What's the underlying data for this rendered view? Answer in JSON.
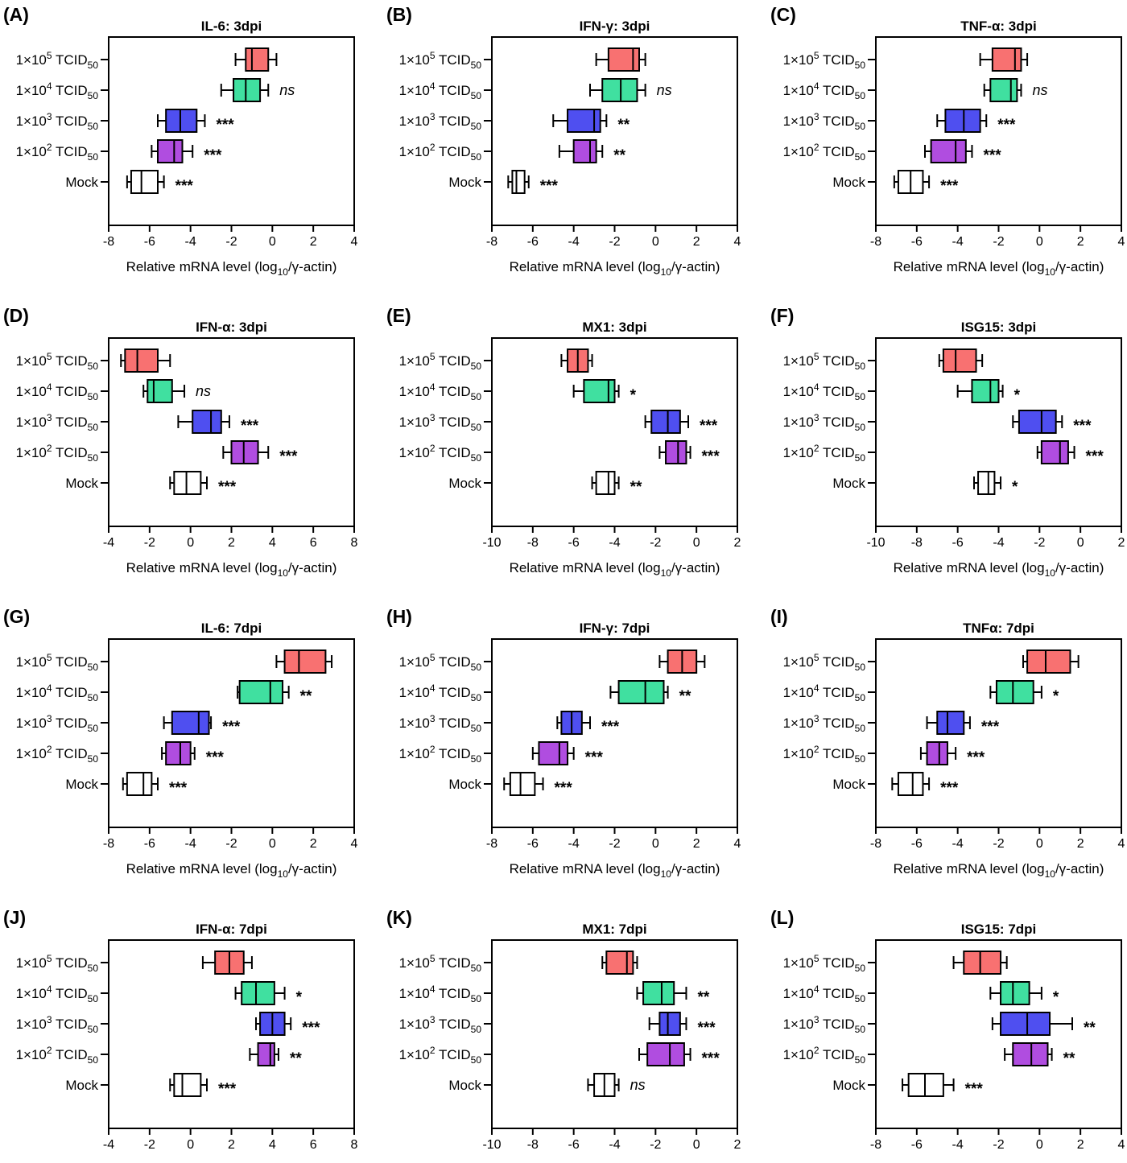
{
  "colors": {
    "1×10^5 TCID50": "#f87171",
    "1×10^4 TCID50": "#40e0a0",
    "1×10^3 TCID50": "#4f4ff0",
    "1×10^2 TCID50": "#b04de0",
    "Mock": "#ffffff"
  },
  "chart_data": [
    {
      "type": "boxplot",
      "panel": "(A)",
      "title": "IL-6: 3dpi",
      "xlabel": "Relative mRNA level (log10/γ-actin)",
      "xlim": [
        -8,
        4
      ],
      "xticks": [
        -8,
        -6,
        -4,
        -2,
        0,
        2,
        4
      ],
      "categories": [
        "1×10^5 TCID50",
        "1×10^4 TCID50",
        "1×10^3 TCID50",
        "1×10^2 TCID50",
        "Mock"
      ],
      "boxes": [
        {
          "min": -1.8,
          "q1": -1.3,
          "median": -1.0,
          "q3": -0.2,
          "max": 0.2,
          "sig": ""
        },
        {
          "min": -2.5,
          "q1": -1.9,
          "median": -1.3,
          "q3": -0.6,
          "max": -0.2,
          "sig": "ns"
        },
        {
          "min": -5.6,
          "q1": -5.2,
          "median": -4.5,
          "q3": -3.7,
          "max": -3.3,
          "sig": "***"
        },
        {
          "min": -5.9,
          "q1": -5.6,
          "median": -4.8,
          "q3": -4.4,
          "max": -3.9,
          "sig": "***"
        },
        {
          "min": -7.1,
          "q1": -6.9,
          "median": -6.4,
          "q3": -5.6,
          "max": -5.3,
          "sig": "***"
        }
      ]
    },
    {
      "type": "boxplot",
      "panel": "(B)",
      "title": "IFN-γ: 3dpi",
      "xlabel": "Relative mRNA level (log10/γ-actin)",
      "xlim": [
        -8,
        4
      ],
      "xticks": [
        -8,
        -6,
        -4,
        -2,
        0,
        2,
        4
      ],
      "categories": [
        "1×10^5 TCID50",
        "1×10^4 TCID50",
        "1×10^3 TCID50",
        "1×10^2 TCID50",
        "Mock"
      ],
      "boxes": [
        {
          "min": -2.9,
          "q1": -2.3,
          "median": -1.1,
          "q3": -0.8,
          "max": -0.5,
          "sig": ""
        },
        {
          "min": -3.2,
          "q1": -2.6,
          "median": -1.7,
          "q3": -0.9,
          "max": -0.5,
          "sig": "ns"
        },
        {
          "min": -5.0,
          "q1": -4.3,
          "median": -3.0,
          "q3": -2.7,
          "max": -2.4,
          "sig": "**"
        },
        {
          "min": -4.7,
          "q1": -4.0,
          "median": -3.2,
          "q3": -2.9,
          "max": -2.6,
          "sig": "**"
        },
        {
          "min": -7.2,
          "q1": -7.0,
          "median": -6.8,
          "q3": -6.4,
          "max": -6.2,
          "sig": "***"
        }
      ]
    },
    {
      "type": "boxplot",
      "panel": "(C)",
      "title": "TNF-α: 3dpi",
      "xlabel": "Relative mRNA level (log10/γ-actin)",
      "xlim": [
        -8,
        4
      ],
      "xticks": [
        -8,
        -6,
        -4,
        -2,
        0,
        2,
        4
      ],
      "categories": [
        "1×10^5 TCID50",
        "1×10^4 TCID50",
        "1×10^3 TCID50",
        "1×10^2 TCID50",
        "Mock"
      ],
      "boxes": [
        {
          "min": -2.9,
          "q1": -2.3,
          "median": -1.2,
          "q3": -0.9,
          "max": -0.6,
          "sig": ""
        },
        {
          "min": -2.7,
          "q1": -2.4,
          "median": -1.4,
          "q3": -1.1,
          "max": -0.9,
          "sig": "ns"
        },
        {
          "min": -5.0,
          "q1": -4.6,
          "median": -3.7,
          "q3": -2.9,
          "max": -2.6,
          "sig": "***"
        },
        {
          "min": -5.6,
          "q1": -5.3,
          "median": -4.1,
          "q3": -3.6,
          "max": -3.3,
          "sig": "***"
        },
        {
          "min": -7.1,
          "q1": -6.9,
          "median": -6.3,
          "q3": -5.7,
          "max": -5.4,
          "sig": "***"
        }
      ]
    },
    {
      "type": "boxplot",
      "panel": "(D)",
      "title": "IFN-α: 3dpi",
      "xlabel": "Relative mRNA level (log10/γ-actin)",
      "xlim": [
        -4,
        8
      ],
      "xticks": [
        -4,
        -2,
        0,
        2,
        4,
        6,
        8
      ],
      "categories": [
        "1×10^5 TCID50",
        "1×10^4 TCID50",
        "1×10^3 TCID50",
        "1×10^2 TCID50",
        "Mock"
      ],
      "boxes": [
        {
          "min": -3.4,
          "q1": -3.2,
          "median": -2.6,
          "q3": -1.6,
          "max": -1.0,
          "sig": ""
        },
        {
          "min": -2.3,
          "q1": -2.1,
          "median": -1.8,
          "q3": -0.9,
          "max": -0.3,
          "sig": "ns"
        },
        {
          "min": -0.6,
          "q1": 0.1,
          "median": 1.0,
          "q3": 1.5,
          "max": 1.9,
          "sig": "***"
        },
        {
          "min": 1.6,
          "q1": 2.0,
          "median": 2.6,
          "q3": 3.3,
          "max": 3.8,
          "sig": "***"
        },
        {
          "min": -1.0,
          "q1": -0.8,
          "median": -0.2,
          "q3": 0.5,
          "max": 0.8,
          "sig": "***"
        }
      ]
    },
    {
      "type": "boxplot",
      "panel": "(E)",
      "title": "MX1: 3dpi",
      "xlabel": "Relative mRNA level (log10/γ-actin)",
      "xlim": [
        -10,
        2
      ],
      "xticks": [
        -10,
        -8,
        -6,
        -4,
        -2,
        0,
        2
      ],
      "categories": [
        "1×10^5 TCID50",
        "1×10^4 TCID50",
        "1×10^3 TCID50",
        "1×10^2 TCID50",
        "Mock"
      ],
      "boxes": [
        {
          "min": -6.6,
          "q1": -6.3,
          "median": -5.8,
          "q3": -5.3,
          "max": -5.1,
          "sig": ""
        },
        {
          "min": -6.0,
          "q1": -5.5,
          "median": -4.3,
          "q3": -4.0,
          "max": -3.8,
          "sig": "*"
        },
        {
          "min": -2.5,
          "q1": -2.2,
          "median": -1.4,
          "q3": -0.8,
          "max": -0.4,
          "sig": "***"
        },
        {
          "min": -1.8,
          "q1": -1.5,
          "median": -0.9,
          "q3": -0.5,
          "max": -0.3,
          "sig": "***"
        },
        {
          "min": -5.1,
          "q1": -4.9,
          "median": -4.3,
          "q3": -4.0,
          "max": -3.8,
          "sig": "**"
        }
      ]
    },
    {
      "type": "boxplot",
      "panel": "(F)",
      "title": "ISG15: 3dpi",
      "xlabel": "Relative mRNA level (log10/γ-actin)",
      "xlim": [
        -10,
        2
      ],
      "xticks": [
        -10,
        -8,
        -6,
        -4,
        -2,
        0,
        2
      ],
      "categories": [
        "1×10^5 TCID50",
        "1×10^4 TCID50",
        "1×10^3 TCID50",
        "1×10^2 TCID50",
        "Mock"
      ],
      "boxes": [
        {
          "min": -6.9,
          "q1": -6.7,
          "median": -6.1,
          "q3": -5.1,
          "max": -4.8,
          "sig": ""
        },
        {
          "min": -6.0,
          "q1": -5.3,
          "median": -4.4,
          "q3": -4.0,
          "max": -3.8,
          "sig": "*"
        },
        {
          "min": -3.3,
          "q1": -3.0,
          "median": -1.9,
          "q3": -1.2,
          "max": -0.9,
          "sig": "***"
        },
        {
          "min": -2.1,
          "q1": -1.9,
          "median": -1.0,
          "q3": -0.6,
          "max": -0.3,
          "sig": "***"
        },
        {
          "min": -5.2,
          "q1": -5.0,
          "median": -4.5,
          "q3": -4.2,
          "max": -3.9,
          "sig": "*"
        }
      ]
    },
    {
      "type": "boxplot",
      "panel": "(G)",
      "title": "IL-6: 7dpi",
      "xlabel": "Relative mRNA level (log10/γ-actin)",
      "xlim": [
        -8,
        4
      ],
      "xticks": [
        -8,
        -6,
        -4,
        -2,
        0,
        2,
        4
      ],
      "categories": [
        "1×10^5 TCID50",
        "1×10^4 TCID50",
        "1×10^3 TCID50",
        "1×10^2 TCID50",
        "Mock"
      ],
      "boxes": [
        {
          "min": 0.2,
          "q1": 0.6,
          "median": 1.3,
          "q3": 2.6,
          "max": 2.9,
          "sig": ""
        },
        {
          "min": -1.7,
          "q1": -1.6,
          "median": -0.1,
          "q3": 0.5,
          "max": 0.8,
          "sig": "**"
        },
        {
          "min": -5.3,
          "q1": -4.9,
          "median": -3.6,
          "q3": -3.1,
          "max": -3.0,
          "sig": "***"
        },
        {
          "min": -5.4,
          "q1": -5.2,
          "median": -4.5,
          "q3": -4.0,
          "max": -3.8,
          "sig": "***"
        },
        {
          "min": -7.3,
          "q1": -7.1,
          "median": -6.3,
          "q3": -5.9,
          "max": -5.6,
          "sig": "***"
        }
      ]
    },
    {
      "type": "boxplot",
      "panel": "(H)",
      "title": "IFN-γ: 7dpi",
      "xlabel": "Relative mRNA level (log10/γ-actin)",
      "xlim": [
        -8,
        4
      ],
      "xticks": [
        -8,
        -6,
        -4,
        -2,
        0,
        2,
        4
      ],
      "categories": [
        "1×10^5 TCID50",
        "1×10^4 TCID50",
        "1×10^3 TCID50",
        "1×10^2 TCID50",
        "Mock"
      ],
      "boxes": [
        {
          "min": 0.2,
          "q1": 0.6,
          "median": 1.3,
          "q3": 2.0,
          "max": 2.4,
          "sig": ""
        },
        {
          "min": -2.2,
          "q1": -1.8,
          "median": -0.5,
          "q3": 0.4,
          "max": 0.6,
          "sig": "**"
        },
        {
          "min": -4.8,
          "q1": -4.6,
          "median": -4.1,
          "q3": -3.6,
          "max": -3.2,
          "sig": "***"
        },
        {
          "min": -6.0,
          "q1": -5.7,
          "median": -4.7,
          "q3": -4.3,
          "max": -4.0,
          "sig": "***"
        },
        {
          "min": -7.4,
          "q1": -7.1,
          "median": -6.6,
          "q3": -5.9,
          "max": -5.5,
          "sig": "***"
        }
      ]
    },
    {
      "type": "boxplot",
      "panel": "(I)",
      "title": "TNFα: 7dpi",
      "xlabel": "Relative mRNA level (log10/γ-actin)",
      "xlim": [
        -8,
        4
      ],
      "xticks": [
        -8,
        -6,
        -4,
        -2,
        0,
        2,
        4
      ],
      "categories": [
        "1×10^5 TCID50",
        "1×10^4 TCID50",
        "1×10^3 TCID50",
        "1×10^2 TCID50",
        "Mock"
      ],
      "boxes": [
        {
          "min": -0.8,
          "q1": -0.6,
          "median": 0.3,
          "q3": 1.5,
          "max": 1.9,
          "sig": ""
        },
        {
          "min": -2.4,
          "q1": -2.1,
          "median": -1.3,
          "q3": -0.3,
          "max": 0.1,
          "sig": "*"
        },
        {
          "min": -5.5,
          "q1": -5.0,
          "median": -4.5,
          "q3": -3.7,
          "max": -3.4,
          "sig": "***"
        },
        {
          "min": -5.8,
          "q1": -5.5,
          "median": -4.9,
          "q3": -4.5,
          "max": -4.1,
          "sig": "***"
        },
        {
          "min": -7.2,
          "q1": -6.9,
          "median": -6.2,
          "q3": -5.7,
          "max": -5.4,
          "sig": "***"
        }
      ]
    },
    {
      "type": "boxplot",
      "panel": "(J)",
      "title": "IFN-α: 7dpi",
      "xlabel": "Relative mRNA level (log10/γ-actin)",
      "xlim": [
        -4,
        8
      ],
      "xticks": [
        -4,
        -2,
        0,
        2,
        4,
        6,
        8
      ],
      "categories": [
        "1×10^5 TCID50",
        "1×10^4 TCID50",
        "1×10^3 TCID50",
        "1×10^2 TCID50",
        "Mock"
      ],
      "boxes": [
        {
          "min": 0.6,
          "q1": 1.2,
          "median": 1.9,
          "q3": 2.6,
          "max": 3.0,
          "sig": ""
        },
        {
          "min": 2.2,
          "q1": 2.5,
          "median": 3.2,
          "q3": 4.1,
          "max": 4.6,
          "sig": "*"
        },
        {
          "min": 3.2,
          "q1": 3.4,
          "median": 4.0,
          "q3": 4.6,
          "max": 4.9,
          "sig": "***"
        },
        {
          "min": 2.9,
          "q1": 3.3,
          "median": 3.9,
          "q3": 4.1,
          "max": 4.3,
          "sig": "**"
        },
        {
          "min": -1.0,
          "q1": -0.8,
          "median": -0.4,
          "q3": 0.5,
          "max": 0.8,
          "sig": "***"
        }
      ]
    },
    {
      "type": "boxplot",
      "panel": "(K)",
      "title": "MX1: 7dpi",
      "xlabel": "Relative mRNA level (log10/γ-actin)",
      "xlim": [
        -10,
        2
      ],
      "xticks": [
        -10,
        -8,
        -6,
        -4,
        -2,
        0,
        2
      ],
      "categories": [
        "1×10^5 TCID50",
        "1×10^4 TCID50",
        "1×10^3 TCID50",
        "1×10^2 TCID50",
        "Mock"
      ],
      "boxes": [
        {
          "min": -4.6,
          "q1": -4.4,
          "median": -3.4,
          "q3": -3.1,
          "max": -2.9,
          "sig": ""
        },
        {
          "min": -2.9,
          "q1": -2.6,
          "median": -1.7,
          "q3": -1.1,
          "max": -0.5,
          "sig": "**"
        },
        {
          "min": -2.3,
          "q1": -1.8,
          "median": -1.4,
          "q3": -0.8,
          "max": -0.5,
          "sig": "***"
        },
        {
          "min": -2.8,
          "q1": -2.4,
          "median": -1.3,
          "q3": -0.6,
          "max": -0.3,
          "sig": "***"
        },
        {
          "min": -5.3,
          "q1": -5.0,
          "median": -4.5,
          "q3": -4.0,
          "max": -3.8,
          "sig": "ns"
        }
      ]
    },
    {
      "type": "boxplot",
      "panel": "(L)",
      "title": "ISG15: 7dpi",
      "xlabel": "Relative mRNA level (log10/γ-actin)",
      "xlim": [
        -8,
        4
      ],
      "xticks": [
        -8,
        -6,
        -4,
        -2,
        0,
        2,
        4
      ],
      "categories": [
        "1×10^5 TCID50",
        "1×10^4 TCID50",
        "1×10^3 TCID50",
        "1×10^2 TCID50",
        "Mock"
      ],
      "boxes": [
        {
          "min": -4.2,
          "q1": -3.7,
          "median": -2.9,
          "q3": -1.9,
          "max": -1.6,
          "sig": ""
        },
        {
          "min": -2.4,
          "q1": -1.9,
          "median": -1.3,
          "q3": -0.5,
          "max": 0.1,
          "sig": "*"
        },
        {
          "min": -2.3,
          "q1": -1.9,
          "median": -0.6,
          "q3": 0.5,
          "max": 1.6,
          "sig": "**"
        },
        {
          "min": -1.7,
          "q1": -1.3,
          "median": -0.4,
          "q3": 0.4,
          "max": 0.6,
          "sig": "**"
        },
        {
          "min": -6.7,
          "q1": -6.4,
          "median": -5.6,
          "q3": -4.7,
          "max": -4.2,
          "sig": "***"
        }
      ]
    }
  ]
}
